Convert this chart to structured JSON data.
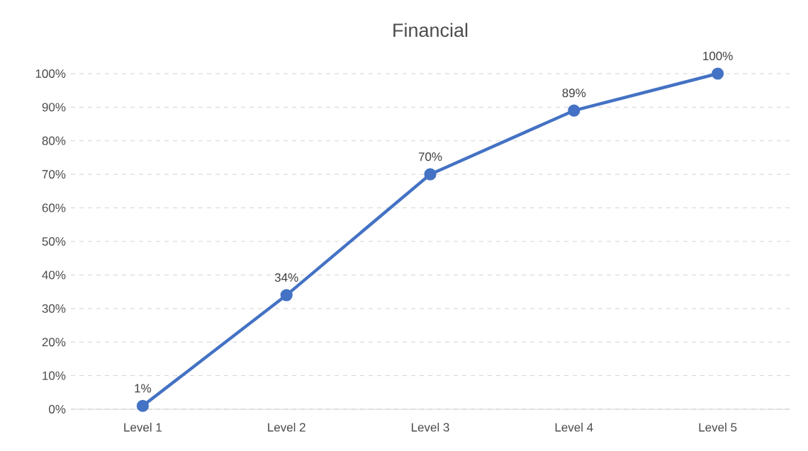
{
  "chart_data": {
    "type": "line",
    "title": "Financial",
    "categories": [
      "Level 1",
      "Level 2",
      "Level 3",
      "Level 4",
      "Level 5"
    ],
    "values": [
      1,
      34,
      70,
      89,
      100
    ],
    "value_labels": [
      "1%",
      "34%",
      "70%",
      "89%",
      "100%"
    ],
    "color": "#4472c4",
    "marker": "circle",
    "line_style": "solid",
    "grid": "y",
    "ylim": [
      0,
      100
    ],
    "yticks": [
      {
        "value": 0,
        "label": "0%"
      },
      {
        "value": 10,
        "label": "10%"
      },
      {
        "value": 20,
        "label": "20%"
      },
      {
        "value": 30,
        "label": "30%"
      },
      {
        "value": 40,
        "label": "40%"
      },
      {
        "value": 50,
        "label": "50%"
      },
      {
        "value": 60,
        "label": "60%"
      },
      {
        "value": 70,
        "label": "70%"
      },
      {
        "value": 80,
        "label": "80%"
      },
      {
        "value": 90,
        "label": "90%"
      },
      {
        "value": 100,
        "label": "100%"
      }
    ]
  }
}
